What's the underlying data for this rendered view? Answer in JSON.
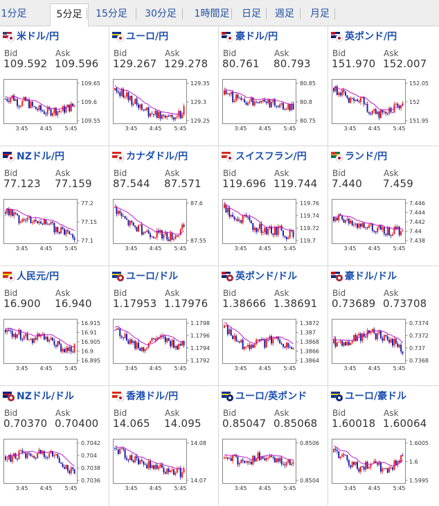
{
  "tabs": [
    {
      "label": "1分足",
      "active": false
    },
    {
      "label": "5分足",
      "active": true
    },
    {
      "label": "15分足",
      "active": false
    },
    {
      "label": "30分足",
      "active": false
    },
    {
      "label": "1時間足",
      "active": false
    },
    {
      "label": "日足",
      "active": false
    },
    {
      "label": "週足",
      "active": false
    },
    {
      "label": "月足",
      "active": false
    }
  ],
  "labels": {
    "bid": "Bid",
    "ask": "Ask"
  },
  "colors": {
    "up": "#e8201d",
    "down": "#1f1fa8",
    "ma": "#c000c0",
    "pair_text": "#1d4fae"
  },
  "pairs": [
    {
      "name": "米ドル/円",
      "flag": "us-jp-flag-icon",
      "bid": "109.592",
      "ask": "109.596",
      "chart_data": {
        "type": "candlestick",
        "x_ticks": [
          "3:45",
          "4:45",
          "5:45"
        ],
        "y_ticks": [
          "109.65",
          "109.6",
          "109.55"
        ],
        "trend": [
          0.55,
          0.6,
          0.45,
          0.5,
          0.35,
          0.3,
          0.25,
          0.3,
          0.28,
          0.35,
          0.4
        ]
      }
    },
    {
      "name": "ユーロ/円",
      "flag": "eu-jp-flag-icon",
      "bid": "129.267",
      "ask": "129.278",
      "chart_data": {
        "type": "candlestick",
        "x_ticks": [
          "3:45",
          "4:45",
          "5:45"
        ],
        "y_ticks": [
          "129.35",
          "129.3",
          "129.25"
        ],
        "trend": [
          0.75,
          0.7,
          0.55,
          0.45,
          0.35,
          0.25,
          0.2,
          0.22,
          0.18,
          0.15,
          0.3
        ]
      }
    },
    {
      "name": "豪ドル/円",
      "flag": "au-jp-flag-icon",
      "bid": "80.761",
      "ask": "80.793",
      "chart_data": {
        "type": "candlestick",
        "x_ticks": [
          "3:45",
          "4:45",
          "5:45"
        ],
        "y_ticks": [
          "80.85",
          "80.8",
          "80.75"
        ],
        "trend": [
          0.65,
          0.6,
          0.55,
          0.5,
          0.48,
          0.55,
          0.5,
          0.45,
          0.4,
          0.38,
          0.35
        ]
      }
    },
    {
      "name": "英ポンド/円",
      "flag": "gb-jp-flag-icon",
      "bid": "151.970",
      "ask": "152.007",
      "chart_data": {
        "type": "candlestick",
        "x_ticks": [
          "3:45",
          "4:45",
          "5:45"
        ],
        "y_ticks": [
          "152.05",
          "152",
          "151.95"
        ],
        "trend": [
          0.8,
          0.7,
          0.5,
          0.45,
          0.55,
          0.3,
          0.2,
          0.25,
          0.3,
          0.35,
          0.4
        ]
      }
    },
    {
      "name": "NZドル/円",
      "flag": "nz-jp-flag-icon",
      "bid": "77.123",
      "ask": "77.159",
      "chart_data": {
        "type": "candlestick",
        "x_ticks": [
          "3:45",
          "4:45",
          "5:45"
        ],
        "y_ticks": [
          "77.2",
          "77.15",
          "77.1"
        ],
        "trend": [
          0.7,
          0.65,
          0.55,
          0.6,
          0.5,
          0.55,
          0.4,
          0.35,
          0.3,
          0.25,
          0.15
        ]
      }
    },
    {
      "name": "カナダドル/円",
      "flag": "ca-jp-flag-icon",
      "bid": "87.544",
      "ask": "87.571",
      "chart_data": {
        "type": "candlestick",
        "x_ticks": [
          "3:45",
          "4:45",
          "5:45"
        ],
        "y_ticks": [
          "87.6",
          "87.55"
        ],
        "trend": [
          0.8,
          0.6,
          0.45,
          0.35,
          0.3,
          0.25,
          0.2,
          0.18,
          0.15,
          0.2,
          0.35
        ]
      }
    },
    {
      "name": "スイスフラン/円",
      "flag": "ch-jp-flag-icon",
      "bid": "119.696",
      "ask": "119.744",
      "chart_data": {
        "type": "candlestick",
        "x_ticks": [
          "3:45",
          "4:45",
          "5:45"
        ],
        "y_ticks": [
          "119.76",
          "119.74",
          "119.72",
          "119.7"
        ],
        "trend": [
          0.8,
          0.6,
          0.5,
          0.55,
          0.4,
          0.35,
          0.3,
          0.25,
          0.3,
          0.2,
          0.25
        ]
      }
    },
    {
      "name": "ランド/円",
      "flag": "za-jp-flag-icon",
      "bid": "7.440",
      "ask": "7.459",
      "chart_data": {
        "type": "candlestick",
        "x_ticks": [
          "3:45",
          "4:45",
          "5:45"
        ],
        "y_ticks": [
          "7.446",
          "7.444",
          "7.442",
          "7.44",
          "7.438"
        ],
        "trend": [
          0.6,
          0.55,
          0.5,
          0.45,
          0.4,
          0.35,
          0.3,
          0.3,
          0.28,
          0.28,
          0.3
        ]
      }
    },
    {
      "name": "人民元/円",
      "flag": "cn-jp-flag-icon",
      "bid": "16.900",
      "ask": "16.940",
      "chart_data": {
        "type": "candlestick",
        "x_ticks": [
          "3:45",
          "4:45",
          "5:45"
        ],
        "y_ticks": [
          "16.915",
          "16.91",
          "16.905",
          "16.9",
          "16.895"
        ],
        "trend": [
          0.75,
          0.7,
          0.65,
          0.6,
          0.55,
          0.6,
          0.5,
          0.45,
          0.35,
          0.3,
          0.35
        ]
      }
    },
    {
      "name": "ユーロ/ドル",
      "flag": "eu-us-flag-icon",
      "bid": "1.17953",
      "ask": "1.17976",
      "chart_data": {
        "type": "candlestick",
        "x_ticks": [
          "3:45",
          "4:45",
          "5:45"
        ],
        "y_ticks": [
          "1.1798",
          "1.1796",
          "1.1794",
          "1.1792"
        ],
        "trend": [
          0.75,
          0.65,
          0.5,
          0.4,
          0.3,
          0.45,
          0.55,
          0.5,
          0.45,
          0.4,
          0.45
        ]
      }
    },
    {
      "name": "英ポンド/ドル",
      "flag": "gb-us-flag-icon",
      "bid": "1.38666",
      "ask": "1.38691",
      "chart_data": {
        "type": "candlestick",
        "x_ticks": [
          "3:45",
          "4:45",
          "5:45"
        ],
        "y_ticks": [
          "1.3872",
          "1.387",
          "1.3868",
          "1.3866",
          "1.3864"
        ],
        "trend": [
          0.8,
          0.65,
          0.5,
          0.35,
          0.45,
          0.5,
          0.45,
          0.55,
          0.5,
          0.4,
          0.3
        ]
      }
    },
    {
      "name": "豪ドル/ドル",
      "flag": "au-us-flag-icon",
      "bid": "0.73689",
      "ask": "0.73708",
      "chart_data": {
        "type": "candlestick",
        "x_ticks": [
          "3:45",
          "4:45",
          "5:45"
        ],
        "y_ticks": [
          "0.7374",
          "0.7372",
          "0.737",
          "0.7368"
        ],
        "trend": [
          0.45,
          0.5,
          0.45,
          0.55,
          0.6,
          0.7,
          0.65,
          0.6,
          0.5,
          0.45,
          0.3
        ]
      }
    },
    {
      "name": "NZドル/ドル",
      "flag": "nz-us-flag-icon",
      "bid": "0.70370",
      "ask": "0.70400",
      "chart_data": {
        "type": "candlestick",
        "x_ticks": [
          "3:45",
          "4:45",
          "5:45"
        ],
        "y_ticks": [
          "0.7042",
          "0.704",
          "0.7038",
          "0.7036"
        ],
        "trend": [
          0.6,
          0.55,
          0.65,
          0.6,
          0.55,
          0.7,
          0.65,
          0.6,
          0.45,
          0.35,
          0.2
        ]
      }
    },
    {
      "name": "香港ドル/円",
      "flag": "hk-jp-flag-icon",
      "bid": "14.065",
      "ask": "14.095",
      "chart_data": {
        "type": "candlestick",
        "x_ticks": [
          "3:45",
          "4:45",
          "5:45"
        ],
        "y_ticks": [
          "14.08",
          "14.07"
        ],
        "trend": [
          0.8,
          0.7,
          0.6,
          0.55,
          0.5,
          0.4,
          0.35,
          0.3,
          0.28,
          0.25,
          0.22
        ]
      }
    },
    {
      "name": "ユーロ/英ポンド",
      "flag": "eu-gb-flag-icon",
      "bid": "0.85047",
      "ask": "0.85068",
      "chart_data": {
        "type": "candlestick",
        "x_ticks": [
          "3:45",
          "4:45",
          "5:45"
        ],
        "y_ticks": [
          "0.8506",
          "0.8504"
        ],
        "trend": [
          0.55,
          0.6,
          0.45,
          0.55,
          0.5,
          0.6,
          0.55,
          0.5,
          0.55,
          0.45,
          0.5
        ]
      }
    },
    {
      "name": "ユーロ/豪ドル",
      "flag": "eu-au-flag-icon",
      "bid": "1.60018",
      "ask": "1.60064",
      "chart_data": {
        "type": "candlestick",
        "x_ticks": [
          "3:45",
          "4:45",
          "5:45"
        ],
        "y_ticks": [
          "1.6005",
          "1.6",
          "1.5995"
        ],
        "trend": [
          0.7,
          0.65,
          0.5,
          0.4,
          0.3,
          0.45,
          0.4,
          0.35,
          0.3,
          0.45,
          0.55
        ]
      }
    }
  ]
}
